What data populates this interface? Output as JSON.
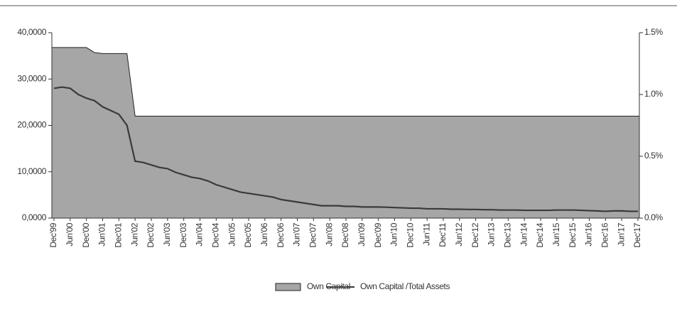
{
  "chart_data": {
    "type": "area",
    "categories": [
      "Dec'99",
      null,
      "Jun'00",
      null,
      "Dec'00",
      null,
      "Jun'01",
      null,
      "Dec'01",
      null,
      "Jun'02",
      null,
      "Dec'02",
      null,
      "Jun'03",
      null,
      "Dec'03",
      null,
      "Jun'04",
      null,
      "Dec'04",
      null,
      "Jun'05",
      null,
      "Dec'05",
      null,
      "Jun'06",
      null,
      "Dec'06",
      null,
      "Jun'07",
      null,
      "Dec'07",
      null,
      "Jun'08",
      null,
      "Dec'08",
      null,
      "Jun'09",
      null,
      "Dec'09",
      null,
      "Jun'10",
      null,
      "Dec'10",
      null,
      "Jun'11",
      null,
      "Dec'11",
      null,
      "Jun'12",
      null,
      "Dec'12",
      null,
      "Jun'13",
      null,
      "Dec'13",
      null,
      "Jun'14",
      null,
      "Dec'14",
      null,
      "Jun'15",
      null,
      "Dec'15",
      null,
      "Jun'16",
      null,
      "Dec'16",
      null,
      "Jun'17",
      null,
      "Dec'17"
    ],
    "series": [
      {
        "name": "Own Capital",
        "type": "area",
        "color": "#a6a6a6",
        "values": [
          36800,
          36800,
          36800,
          36800,
          36800,
          35700,
          35500,
          35500,
          35500,
          35500,
          22000,
          22000,
          22000,
          22000,
          22000,
          22000,
          22000,
          22000,
          22000,
          22000,
          22000,
          22000,
          22000,
          22000,
          22000,
          22000,
          22000,
          22000,
          22000,
          22000,
          22000,
          22000,
          22000,
          22000,
          22000,
          22000,
          22000,
          22000,
          22000,
          22000,
          22000,
          22000,
          22000,
          22000,
          22000,
          22000,
          22000,
          22000,
          22000,
          22000,
          22000,
          22000,
          22000,
          22000,
          22000,
          22000,
          22000,
          22000,
          22000,
          22000,
          22000,
          22000,
          22000,
          22000,
          22000,
          22000,
          22000,
          22000,
          22000,
          22000,
          22000,
          22000,
          22000
        ]
      },
      {
        "name": "Own Capital /Total Assets",
        "type": "line",
        "axis": "y2",
        "color": "#3a3a3a",
        "values": [
          1.05,
          1.06,
          1.05,
          1.0,
          0.97,
          0.95,
          0.9,
          0.87,
          0.84,
          0.75,
          0.46,
          0.45,
          0.43,
          0.41,
          0.4,
          0.37,
          0.35,
          0.33,
          0.32,
          0.3,
          0.27,
          0.25,
          0.23,
          0.21,
          0.2,
          0.19,
          0.18,
          0.17,
          0.15,
          0.14,
          0.13,
          0.12,
          0.11,
          0.1,
          0.1,
          0.1,
          0.095,
          0.095,
          0.09,
          0.09,
          0.09,
          0.088,
          0.085,
          0.083,
          0.08,
          0.08,
          0.075,
          0.075,
          0.075,
          0.072,
          0.072,
          0.07,
          0.07,
          0.068,
          0.068,
          0.065,
          0.065,
          0.065,
          0.063,
          0.063,
          0.063,
          0.063,
          0.065,
          0.065,
          0.065,
          0.063,
          0.06,
          0.058,
          0.055,
          0.058,
          0.058,
          0.055,
          0.055
        ]
      }
    ],
    "ylim": [
      0,
      40000
    ],
    "yticks": [
      {
        "value": 0,
        "label": "0,0000"
      },
      {
        "value": 10000,
        "label": "10,0000"
      },
      {
        "value": 20000,
        "label": "20,0000"
      },
      {
        "value": 30000,
        "label": "30,0000"
      },
      {
        "value": 40000,
        "label": "40,0000"
      }
    ],
    "y2lim": [
      0,
      1.5
    ],
    "y2ticks": [
      {
        "value": 0,
        "label": "0.0%"
      },
      {
        "value": 0.5,
        "label": "0.5%"
      },
      {
        "value": 1.0,
        "label": "1.0%"
      },
      {
        "value": 1.5,
        "label": "1.5%"
      }
    ],
    "grid": false,
    "legend": "bottom"
  }
}
